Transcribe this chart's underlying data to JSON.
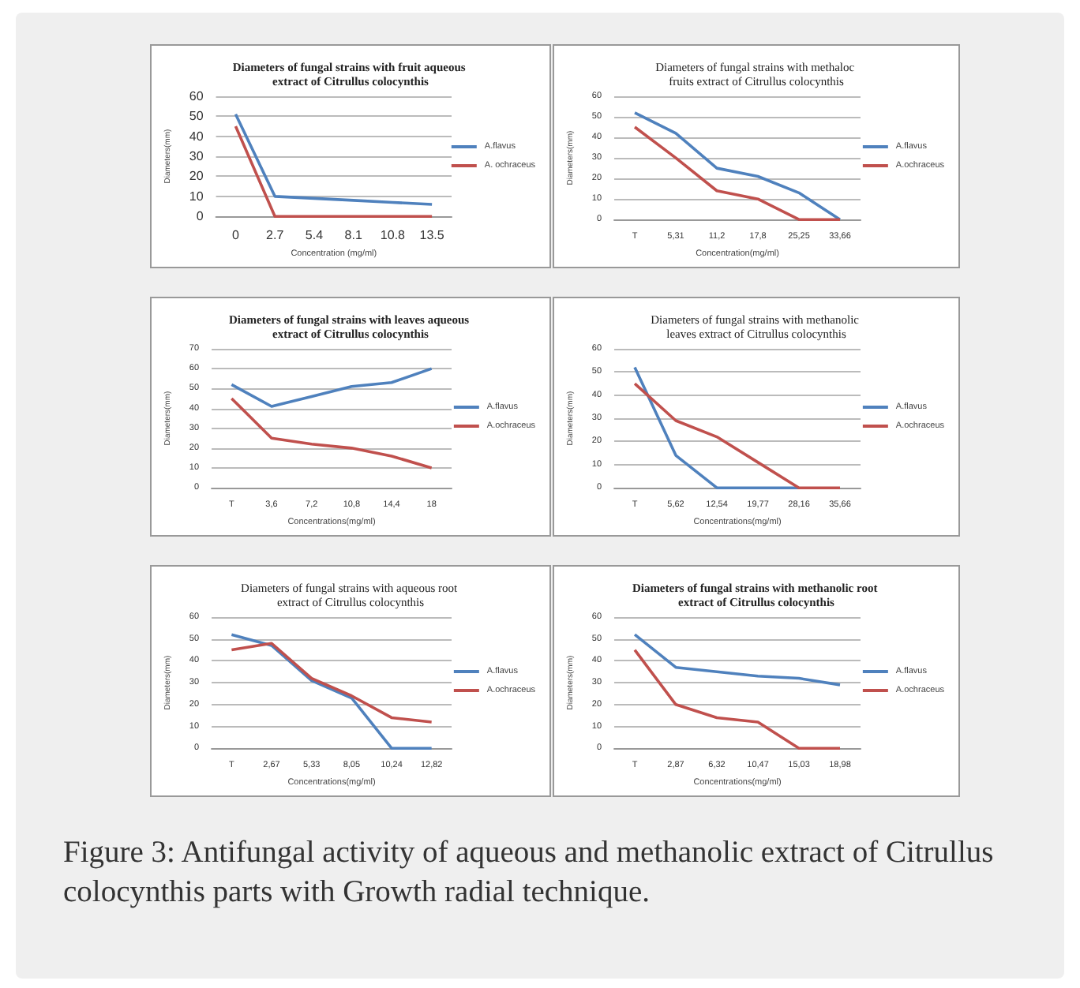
{
  "chart_data": [
    {
      "type": "line",
      "title": "Diameters of fungal strains with fruit aqueous extract of Citrullus colocynthis",
      "xlabel": "Concentration (mg/ml)",
      "ylabel": "Diameters(mm)",
      "categories": [
        "0",
        "2.7",
        "5.4",
        "8.1",
        "10.8",
        "13.5"
      ],
      "series": [
        {
          "name": "A.flavus",
          "color": "#4f81bd",
          "values": [
            51,
            10,
            9,
            8,
            7,
            6
          ]
        },
        {
          "name": "A. ochraceus",
          "color": "#c0504d",
          "values": [
            45,
            0,
            0,
            0,
            0,
            0
          ]
        }
      ],
      "ylim": [
        0,
        60
      ],
      "yticks": [
        0,
        10,
        20,
        30,
        40,
        50,
        60
      ],
      "grid": "y",
      "legend": "right"
    },
    {
      "type": "line",
      "title": "Diameters of fungal strains with methaloc fruits extract of Citrullus colocynthis",
      "xlabel": "Concentration(mg/ml)",
      "ylabel": "Diameters(mm)",
      "categories": [
        "T",
        "5,31",
        "11,2",
        "17,8",
        "25,25",
        "33,66"
      ],
      "series": [
        {
          "name": "A.flavus",
          "color": "#4f81bd",
          "values": [
            52,
            42,
            25,
            21,
            13,
            0
          ]
        },
        {
          "name": "A.ochraceus",
          "color": "#c0504d",
          "values": [
            45,
            30,
            14,
            10,
            0,
            0
          ]
        }
      ],
      "ylim": [
        0,
        60
      ],
      "yticks": [
        0,
        10,
        20,
        30,
        40,
        50,
        60
      ],
      "grid": "y",
      "legend": "right"
    },
    {
      "type": "line",
      "title": "Diameters of fungal strains with leaves aqueous extract of Citrullus colocynthis",
      "xlabel": "Concentrations(mg/ml)",
      "ylabel": "Diameters(mm)",
      "categories": [
        "T",
        "3,6",
        "7,2",
        "10,8",
        "14,4",
        "18"
      ],
      "series": [
        {
          "name": "A.flavus",
          "color": "#4f81bd",
          "values": [
            52,
            41,
            46,
            51,
            53,
            60
          ]
        },
        {
          "name": "A.ochraceus",
          "color": "#c0504d",
          "values": [
            45,
            25,
            22,
            20,
            16,
            10
          ]
        }
      ],
      "ylim": [
        0,
        70
      ],
      "yticks": [
        0,
        10,
        20,
        30,
        40,
        50,
        60,
        70
      ],
      "grid": "y",
      "legend": "right"
    },
    {
      "type": "line",
      "title": "Diameters of fungal strains with methanolic leaves extract of Citrullus colocynthis",
      "xlabel": "Concentrations(mg/ml)",
      "ylabel": "Diameters(mm)",
      "categories": [
        "T",
        "5,62",
        "12,54",
        "19,77",
        "28,16",
        "35,66"
      ],
      "series": [
        {
          "name": "A.flavus",
          "color": "#4f81bd",
          "values": [
            52,
            14,
            0,
            0,
            0,
            null
          ]
        },
        {
          "name": "A.ochraceus",
          "color": "#c0504d",
          "values": [
            45,
            29,
            22,
            11,
            0,
            0
          ]
        }
      ],
      "ylim": [
        0,
        60
      ],
      "yticks": [
        0,
        10,
        20,
        30,
        40,
        50,
        60
      ],
      "grid": "y",
      "legend": "right"
    },
    {
      "type": "line",
      "title": "Diameters of fungal strains with aqueous root extract of Citrullus colocynthis",
      "xlabel": "Concentrations(mg/ml)",
      "ylabel": "Diameters(mm)",
      "categories": [
        "T",
        "2,67",
        "5,33",
        "8,05",
        "10,24",
        "12,82"
      ],
      "series": [
        {
          "name": "A.flavus",
          "color": "#4f81bd",
          "values": [
            52,
            47,
            31,
            23,
            0,
            0
          ]
        },
        {
          "name": "A.ochraceus",
          "color": "#c0504d",
          "values": [
            45,
            48,
            32,
            24,
            14,
            12
          ]
        }
      ],
      "ylim": [
        0,
        60
      ],
      "yticks": [
        0,
        10,
        20,
        30,
        40,
        50,
        60
      ],
      "grid": "y",
      "legend": "right"
    },
    {
      "type": "line",
      "title": "Diameters of fungal strains with methanolic root extract of Citrullus colocynthis",
      "xlabel": "Concentrations(mg/ml)",
      "ylabel": "Diameters(mm)",
      "categories": [
        "T",
        "2,87",
        "6,32",
        "10,47",
        "15,03",
        "18,98"
      ],
      "series": [
        {
          "name": "A.flavus",
          "color": "#4f81bd",
          "values": [
            52,
            37,
            35,
            33,
            32,
            29
          ]
        },
        {
          "name": "A.ochraceus",
          "color": "#c0504d",
          "values": [
            45,
            20,
            14,
            12,
            0,
            0
          ]
        }
      ],
      "ylim": [
        0,
        60
      ],
      "yticks": [
        0,
        10,
        20,
        30,
        40,
        50,
        60
      ],
      "grid": "y",
      "legend": "right",
      "annotations": [
        "Figure 3: Antifungal activity of aqueous and methanolic extract of Citrullus colocynthis parts with Growth radial technique."
      ]
    }
  ]
}
